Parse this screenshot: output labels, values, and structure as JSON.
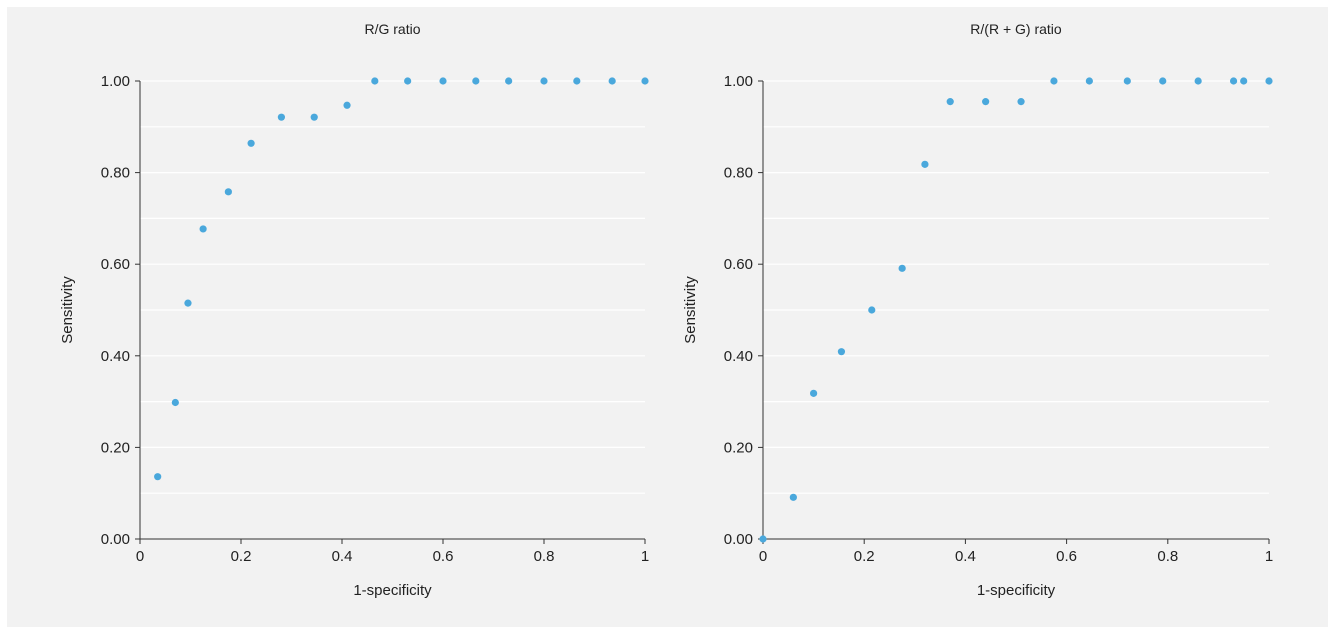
{
  "chart_data": [
    {
      "type": "scatter",
      "title": "R/G ratio",
      "xlabel": "1-specificity",
      "ylabel": "Sensitivity",
      "xlim": [
        0,
        1
      ],
      "ylim": [
        0,
        1
      ],
      "xticks": [
        "0",
        "0.2",
        "0.4",
        "0.6",
        "0.8",
        "1"
      ],
      "yticks": [
        "0.00",
        "0.20",
        "0.40",
        "0.60",
        "0.80",
        "1.00"
      ],
      "grid": "horizontal",
      "color": "#4aa8dc",
      "series": [
        {
          "x": [
            0.035,
            0.07,
            0.095,
            0.125,
            0.175,
            0.22,
            0.28,
            0.345,
            0.41,
            0.465,
            0.53,
            0.6,
            0.665,
            0.73,
            0.8,
            0.865,
            0.935,
            1.0
          ],
          "y": [
            0.136,
            0.298,
            0.515,
            0.677,
            0.758,
            0.864,
            0.921,
            0.921,
            0.947,
            1.0,
            1.0,
            1.0,
            1.0,
            1.0,
            1.0,
            1.0,
            1.0,
            1.0
          ]
        }
      ]
    },
    {
      "type": "scatter",
      "title": "R/(R + G) ratio",
      "xlabel": "1-specificity",
      "ylabel": "Sensitivity",
      "xlim": [
        0,
        1
      ],
      "ylim": [
        0,
        1
      ],
      "xticks": [
        "0",
        "0.2",
        "0.4",
        "0.6",
        "0.8",
        "1"
      ],
      "yticks": [
        "0.00",
        "0.20",
        "0.40",
        "0.60",
        "0.80",
        "1.00"
      ],
      "grid": "horizontal",
      "color": "#4aa8dc",
      "series": [
        {
          "x": [
            0.0,
            0.06,
            0.1,
            0.155,
            0.215,
            0.275,
            0.32,
            0.37,
            0.44,
            0.51,
            0.575,
            0.645,
            0.72,
            0.79,
            0.86,
            0.93,
            0.95,
            1.0
          ],
          "y": [
            0.0,
            0.091,
            0.318,
            0.409,
            0.5,
            0.591,
            0.818,
            0.955,
            0.955,
            0.955,
            1.0,
            1.0,
            1.0,
            1.0,
            1.0,
            1.0,
            1.0,
            1.0
          ]
        }
      ]
    }
  ]
}
